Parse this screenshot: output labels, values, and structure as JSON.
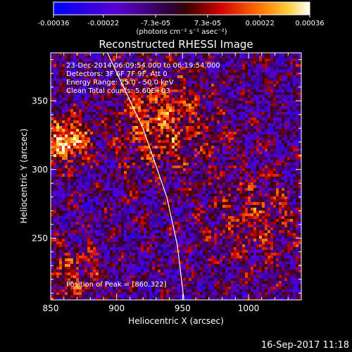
{
  "colorbar": {
    "ticks": [
      "-0.00036",
      "-0.00022",
      "-7.3e-05",
      "7.3e-05",
      "0.00022",
      "0.00036"
    ],
    "tick_values": [
      -0.00036,
      -0.00022,
      -7.3e-05,
      7.3e-05,
      0.00022,
      0.00036
    ],
    "units_text": "(photons cm⁻² s⁻¹ asec⁻²)"
  },
  "chart_data": {
    "type": "heatmap",
    "title": "Reconstructed RHESSI Image",
    "xlabel": "Heliocentric X (arcsec)",
    "ylabel": "Heliocentric Y (arcsec)",
    "xlim": [
      850,
      1040
    ],
    "ylim": [
      205,
      385
    ],
    "xticks": [
      850,
      900,
      950,
      1000
    ],
    "yticks": [
      250,
      300,
      350
    ],
    "clim": [
      -0.00036,
      0.00036
    ],
    "limb_curve": [
      [
        893,
        385
      ],
      [
        920,
        330
      ],
      [
        938,
        280
      ],
      [
        946,
        245
      ],
      [
        951,
        205
      ]
    ],
    "peak": [
      860,
      322
    ],
    "annotations": {
      "time": "23-Dec-2014 06:09:54.000 to 06:19:54.000",
      "detectors": "Detectors: 3F 6F 7F 9F, Att 0",
      "energy": "Energy Range: 25.0 - 50.0 keV",
      "clean": "Clean     Total counts: 5.60E+03",
      "peak_label": "Position of Peak = [860,322]"
    }
  },
  "footer": {
    "timestamp": "16-Sep-2017 11:18"
  }
}
